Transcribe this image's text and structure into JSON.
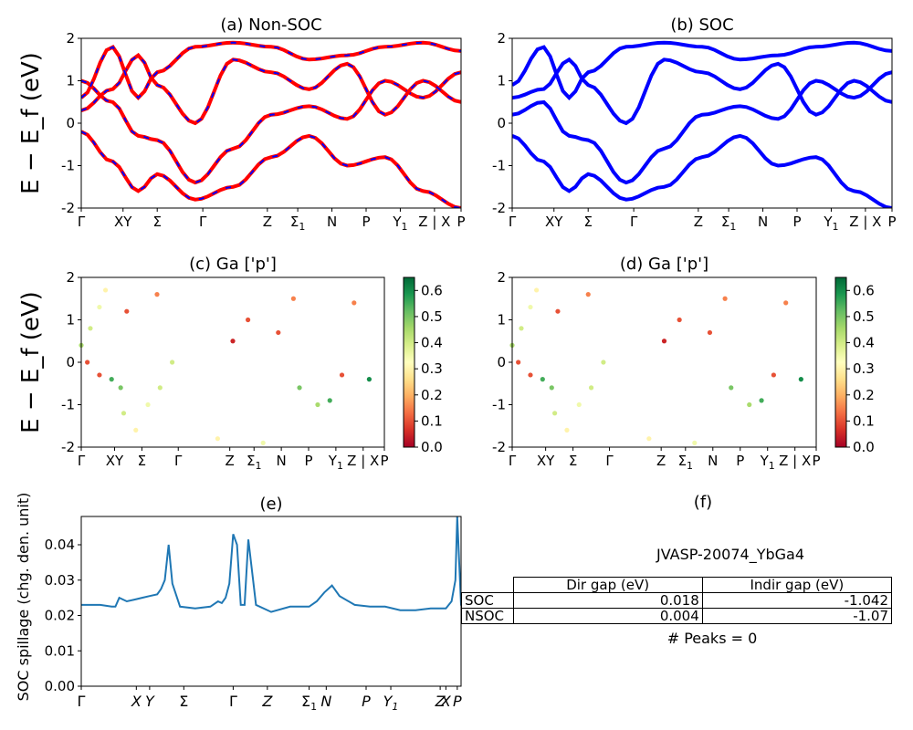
{
  "colors": {
    "nonsoc_line": "#ff0000",
    "nonsoc_dash": "#0000ff",
    "soc_line": "#0000ff",
    "spillage_line": "#1f77b4"
  },
  "kpath_labels": [
    "Γ",
    "XY",
    "Σ",
    "Γ",
    "Z",
    "Σ1",
    "N",
    "P",
    "Y1",
    "Z | X",
    "P"
  ],
  "panel_c": {
    "title": "(c)  Ga ['p']",
    "colorbar_ticks": [
      "0.0",
      "0.1",
      "0.2",
      "0.3",
      "0.4",
      "0.5",
      "0.6"
    ],
    "colormap": "RdYlGn"
  },
  "panel_d": {
    "title": "(d) Ga ['p']",
    "colorbar_ticks": [
      "0.0",
      "0.1",
      "0.2",
      "0.3",
      "0.4",
      "0.5",
      "0.6"
    ],
    "colormap": "RdYlGn"
  },
  "panel_e": {
    "title": "(e)",
    "xticks": [
      "Γ",
      "X",
      "Y",
      "Σ",
      "Γ",
      "Z",
      "Σ1",
      "N",
      "P",
      "Y1",
      "Z",
      "X",
      "P"
    ]
  },
  "panel_f": {
    "title": "(f)",
    "material": "JVASP-20074_YbGa4",
    "table": {
      "headers": [
        "",
        "Dir gap (eV)",
        "Indir gap (eV)"
      ],
      "rows": [
        {
          "label": "SOC",
          "dir": "0.018",
          "indir": "-1.042"
        },
        {
          "label": "NSOC",
          "dir": "0.004",
          "indir": "-1.07"
        }
      ]
    },
    "peaks": "# Peaks = 0"
  },
  "chart_data": [
    {
      "type": "line",
      "title": "(a) Non-SOC",
      "ylabel": "E − E_f (eV)",
      "ylim": [
        -2,
        2
      ],
      "yticks": [
        "-2",
        "-1",
        "0",
        "1",
        "2"
      ],
      "x": [
        0,
        0.08,
        0.15,
        0.2,
        0.3,
        0.4,
        0.5,
        0.6,
        0.7,
        0.8,
        0.9,
        1.0
      ],
      "series": [
        {
          "name": "",
          "values": [
            1.0,
            0.5,
            -0.3,
            -0.4,
            -1.4,
            -0.6,
            0.2,
            0.4,
            0.1,
            1.0,
            0.6,
            1.2
          ]
        },
        {
          "name": "",
          "values": [
            0.3,
            0.8,
            1.6,
            0.9,
            0.0,
            1.5,
            1.2,
            0.8,
            1.4,
            0.2,
            1.0,
            0.5
          ]
        },
        {
          "name": "",
          "values": [
            -0.2,
            -0.9,
            -1.6,
            -1.2,
            -1.8,
            -1.5,
            -0.8,
            -0.3,
            -1.0,
            -0.8,
            -1.6,
            -2.0
          ]
        },
        {
          "name": "",
          "values": [
            0.6,
            1.8,
            0.6,
            1.2,
            1.8,
            1.9,
            1.8,
            1.5,
            1.6,
            1.8,
            1.9,
            1.7
          ]
        }
      ]
    },
    {
      "type": "line",
      "title": "(b) SOC",
      "ylabel": "",
      "ylim": [
        -2,
        2
      ],
      "yticks": [
        "-2",
        "-1",
        "0",
        "1",
        "2"
      ],
      "x": [
        0,
        0.08,
        0.15,
        0.2,
        0.3,
        0.4,
        0.5,
        0.6,
        0.7,
        0.8,
        0.9,
        1.0
      ],
      "series": [
        {
          "name": "",
          "values": [
            0.6,
            0.8,
            1.5,
            0.9,
            0.0,
            1.5,
            1.2,
            0.8,
            1.4,
            0.2,
            1.0,
            0.5
          ]
        },
        {
          "name": "",
          "values": [
            0.2,
            0.5,
            -0.3,
            -0.4,
            -1.4,
            -0.6,
            0.2,
            0.4,
            0.1,
            1.0,
            0.6,
            1.2
          ]
        },
        {
          "name": "",
          "values": [
            -0.3,
            -0.9,
            -1.6,
            -1.2,
            -1.8,
            -1.5,
            -0.8,
            -0.3,
            -1.0,
            -0.8,
            -1.6,
            -2.0
          ]
        },
        {
          "name": "",
          "values": [
            0.9,
            1.8,
            0.6,
            1.2,
            1.8,
            1.9,
            1.8,
            1.5,
            1.6,
            1.8,
            1.9,
            1.7
          ]
        }
      ]
    },
    {
      "type": "scatter",
      "title": "(c)  Ga ['p']",
      "ylabel": "E − E_f (eV)",
      "ylim": [
        -2,
        2
      ],
      "clim": [
        0,
        0.65
      ],
      "points": [
        [
          0.0,
          0.4,
          0.45
        ],
        [
          0.03,
          0.8,
          0.4
        ],
        [
          0.06,
          1.3,
          0.35
        ],
        [
          0.08,
          1.7,
          0.3
        ],
        [
          0.02,
          0.0,
          0.1
        ],
        [
          0.06,
          -0.3,
          0.1
        ],
        [
          0.1,
          -0.4,
          0.55
        ],
        [
          0.13,
          -0.6,
          0.5
        ],
        [
          0.14,
          -1.2,
          0.4
        ],
        [
          0.18,
          -1.6,
          0.3
        ],
        [
          0.22,
          -1.0,
          0.35
        ],
        [
          0.26,
          -0.6,
          0.4
        ],
        [
          0.3,
          0.0,
          0.4
        ],
        [
          0.15,
          1.2,
          0.1
        ],
        [
          0.25,
          1.6,
          0.15
        ],
        [
          0.5,
          0.5,
          0.05
        ],
        [
          0.55,
          1.0,
          0.1
        ],
        [
          0.65,
          0.7,
          0.1
        ],
        [
          0.7,
          1.5,
          0.15
        ],
        [
          0.72,
          -0.6,
          0.5
        ],
        [
          0.78,
          -1.0,
          0.45
        ],
        [
          0.82,
          -0.9,
          0.55
        ],
        [
          0.86,
          -0.3,
          0.1
        ],
        [
          0.95,
          -0.4,
          0.6
        ],
        [
          0.9,
          1.4,
          0.15
        ],
        [
          0.45,
          -1.8,
          0.3
        ],
        [
          0.6,
          -1.9,
          0.35
        ]
      ]
    },
    {
      "type": "scatter",
      "title": "(d) Ga ['p']",
      "ylabel": "",
      "ylim": [
        -2,
        2
      ],
      "clim": [
        0,
        0.65
      ],
      "points": [
        [
          0.0,
          0.4,
          0.45
        ],
        [
          0.03,
          0.8,
          0.4
        ],
        [
          0.06,
          1.3,
          0.35
        ],
        [
          0.08,
          1.7,
          0.3
        ],
        [
          0.02,
          0.0,
          0.1
        ],
        [
          0.06,
          -0.3,
          0.1
        ],
        [
          0.1,
          -0.4,
          0.55
        ],
        [
          0.13,
          -0.6,
          0.5
        ],
        [
          0.14,
          -1.2,
          0.4
        ],
        [
          0.18,
          -1.6,
          0.3
        ],
        [
          0.22,
          -1.0,
          0.35
        ],
        [
          0.26,
          -0.6,
          0.4
        ],
        [
          0.3,
          0.0,
          0.4
        ],
        [
          0.15,
          1.2,
          0.1
        ],
        [
          0.25,
          1.6,
          0.15
        ],
        [
          0.5,
          0.5,
          0.05
        ],
        [
          0.55,
          1.0,
          0.1
        ],
        [
          0.65,
          0.7,
          0.1
        ],
        [
          0.7,
          1.5,
          0.15
        ],
        [
          0.72,
          -0.6,
          0.5
        ],
        [
          0.78,
          -1.0,
          0.45
        ],
        [
          0.82,
          -0.9,
          0.55
        ],
        [
          0.86,
          -0.3,
          0.1
        ],
        [
          0.95,
          -0.4,
          0.6
        ],
        [
          0.9,
          1.4,
          0.15
        ],
        [
          0.45,
          -1.8,
          0.3
        ],
        [
          0.6,
          -1.9,
          0.35
        ]
      ]
    },
    {
      "type": "line",
      "title": "(e)",
      "ylabel": "SOC spillage (chg. den. unit)",
      "ylim": [
        0,
        0.048
      ],
      "yticks": [
        "0.00",
        "0.01",
        "0.02",
        "0.03",
        "0.04"
      ],
      "x": [
        0,
        0.05,
        0.08,
        0.09,
        0.1,
        0.12,
        0.14,
        0.16,
        0.18,
        0.2,
        0.21,
        0.22,
        0.23,
        0.24,
        0.26,
        0.3,
        0.34,
        0.36,
        0.37,
        0.38,
        0.39,
        0.4,
        0.41,
        0.42,
        0.43,
        0.44,
        0.46,
        0.5,
        0.55,
        0.6,
        0.62,
        0.64,
        0.66,
        0.68,
        0.72,
        0.76,
        0.8,
        0.84,
        0.88,
        0.92,
        0.94,
        0.96,
        0.975,
        0.985,
        0.99,
        1.0
      ],
      "series": [
        {
          "name": "",
          "values": [
            0.023,
            0.023,
            0.0225,
            0.0225,
            0.025,
            0.024,
            0.0245,
            0.025,
            0.0255,
            0.026,
            0.0275,
            0.03,
            0.04,
            0.029,
            0.0225,
            0.022,
            0.0225,
            0.024,
            0.0235,
            0.025,
            0.029,
            0.043,
            0.04,
            0.023,
            0.023,
            0.0415,
            0.023,
            0.021,
            0.0225,
            0.0225,
            0.024,
            0.0265,
            0.0285,
            0.0255,
            0.023,
            0.0225,
            0.0225,
            0.0215,
            0.0215,
            0.022,
            0.022,
            0.022,
            0.024,
            0.03,
            0.048,
            0.0228
          ]
        }
      ]
    }
  ]
}
